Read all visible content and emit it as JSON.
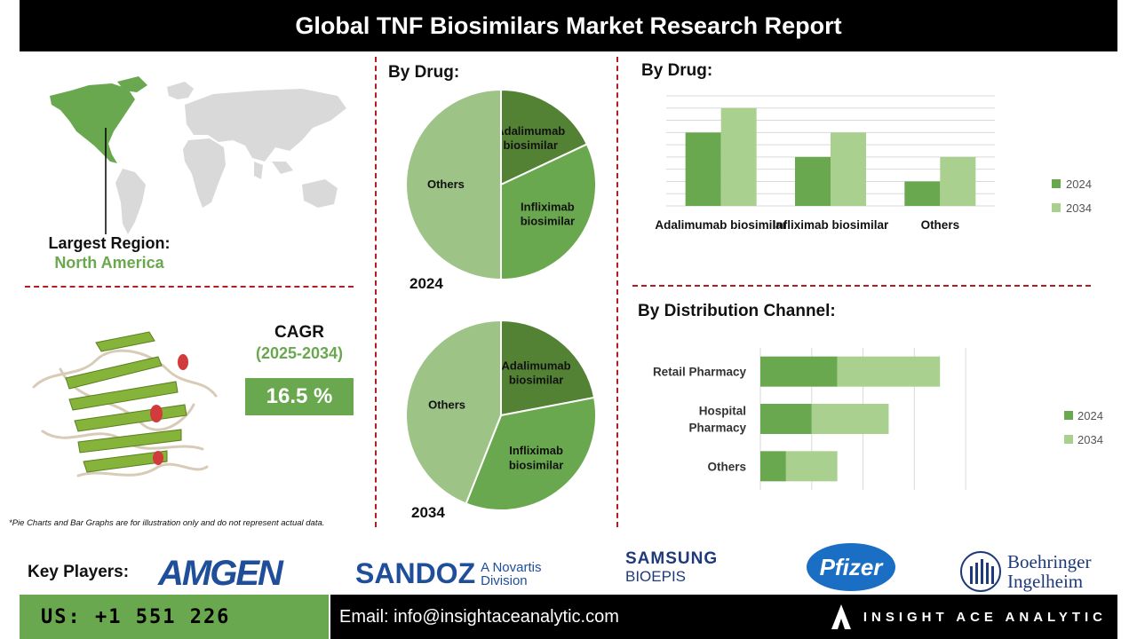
{
  "header": {
    "title": "Global TNF Biosimilars Market Research Report"
  },
  "region": {
    "label": "Largest Region:",
    "value": "North America"
  },
  "cagr": {
    "label": "CAGR",
    "period": "(2025-2034)",
    "value": "16.5 %"
  },
  "note": "*Pie Charts and Bar Graphs are for illustration only and do not represent actual data.",
  "colors": {
    "dark_green": "#548235",
    "mid_green": "#6aa84f",
    "light_green": "#9dc386",
    "lighter_green": "#a9d08e",
    "accent_red": "#b01e24"
  },
  "chart_data": [
    {
      "type": "pie",
      "title": "By Drug:",
      "year_label": "2024",
      "labels": [
        "Adalimumab biosimilar",
        "Infliximab biosimilar",
        "Others"
      ],
      "values": [
        18,
        32,
        50
      ],
      "colors": [
        "#548235",
        "#6aa84f",
        "#9dc386"
      ]
    },
    {
      "type": "pie",
      "year_label": "2034",
      "labels": [
        "Adalimumab biosimilar",
        "Infliximab biosimilar",
        "Others"
      ],
      "values": [
        22,
        34,
        44
      ],
      "colors": [
        "#548235",
        "#6aa84f",
        "#9dc386"
      ]
    },
    {
      "type": "bar",
      "title": "By Drug:",
      "categories": [
        "Adalimumab biosimilar",
        "Infliximab biosimilar",
        "Others"
      ],
      "series": [
        {
          "name": "2024",
          "values": [
            3,
            2,
            1
          ],
          "color": "#6aa84f"
        },
        {
          "name": "2034",
          "values": [
            4,
            3,
            2
          ],
          "color": "#a9d08e"
        }
      ],
      "ylim": [
        0,
        4.5
      ],
      "grid": true,
      "legend": "right"
    },
    {
      "type": "bar",
      "orientation": "horizontal",
      "stacked": true,
      "title": "By Distribution Channel:",
      "categories": [
        "Retail Pharmacy",
        "Hospital Pharmacy",
        "Others"
      ],
      "series": [
        {
          "name": "2024",
          "values": [
            1.5,
            1.0,
            0.5
          ],
          "color": "#6aa84f"
        },
        {
          "name": "2034",
          "values": [
            2.0,
            1.5,
            1.0
          ],
          "color": "#a9d08e"
        }
      ],
      "xlim": [
        0,
        4.5
      ],
      "grid": true,
      "legend": "right"
    }
  ],
  "key_players": {
    "label": "Key Players:",
    "logos": [
      "AMGEN",
      "SANDOZ",
      "A Novartis",
      "Division",
      "SAMSUNG",
      "BIOEPIS",
      "Pfizer",
      "Boehringer",
      "Ingelheim"
    ]
  },
  "footer": {
    "phone": "US: +1 551 226",
    "email": "Email: info@insightaceanalytic.com",
    "brand": "INSIGHT ACE ANALYTIC"
  }
}
